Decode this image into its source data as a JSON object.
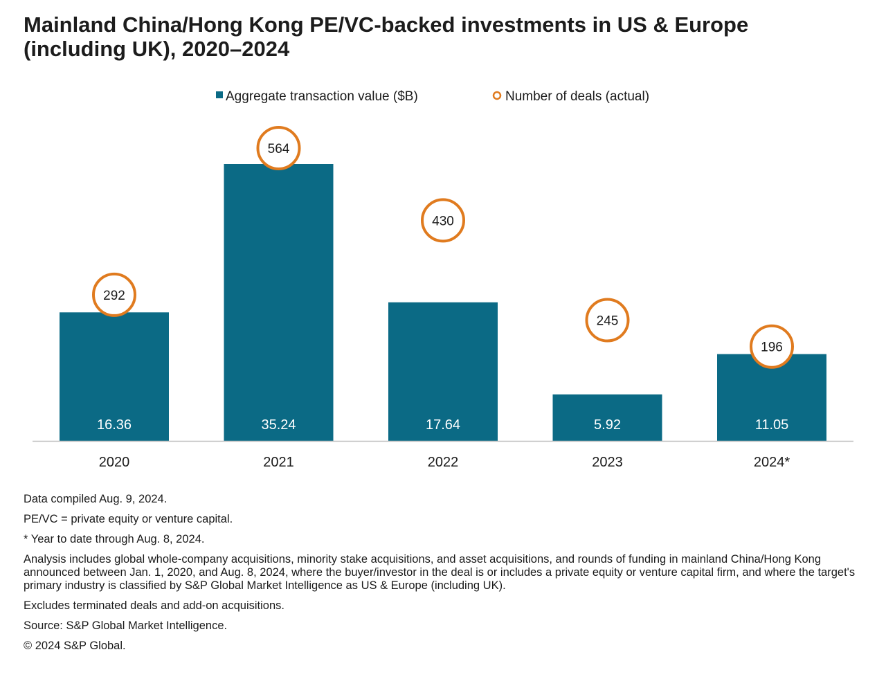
{
  "title_lines": [
    "Mainland China/Hong Kong PE/VC-backed investments in US & Europe",
    "(including UK), 2020–2024"
  ],
  "colors": {
    "bar": "#0b6a85",
    "deal_circle": "#e07b1f",
    "axis": "#bfbfbf",
    "text": "#1a1a1a"
  },
  "chart_data": {
    "type": "bar",
    "categories": [
      "2020",
      "2021",
      "2022",
      "2023",
      "2024*"
    ],
    "series": [
      {
        "name": "Aggregate transaction value ($B)",
        "type": "bar",
        "values": [
          16.36,
          35.24,
          17.64,
          5.92,
          11.05
        ],
        "labels": [
          "16.36",
          "35.24",
          "17.64",
          "5.92",
          "11.05"
        ]
      },
      {
        "name": "Number of deals (actual)",
        "type": "circle-marker",
        "values": [
          292,
          564,
          430,
          245,
          196
        ],
        "labels": [
          "292",
          "564",
          "430",
          "245",
          "196"
        ]
      }
    ],
    "legend_position": "top",
    "grid": false,
    "ylim": [
      0,
      35.24
    ]
  },
  "notes": [
    "Data compiled Aug. 9, 2024.",
    "PE/VC = private equity or venture capital.",
    "* Year to date through Aug. 8, 2024.",
    "Analysis includes global whole-company acquisitions, minority stake acquisitions, and asset acquisitions, and rounds of funding in mainland China/Hong Kong announced between Jan. 1, 2020, and Aug. 8, 2024, where the buyer/investor in the deal is or includes a private equity or venture capital firm, and where the target's primary industry is classified by S&P Global Market Intelligence as US & Europe (including UK).",
    "Excludes terminated deals and add-on acquisitions.",
    "Source: S&P Global Market Intelligence.",
    "© 2024 S&P Global."
  ]
}
